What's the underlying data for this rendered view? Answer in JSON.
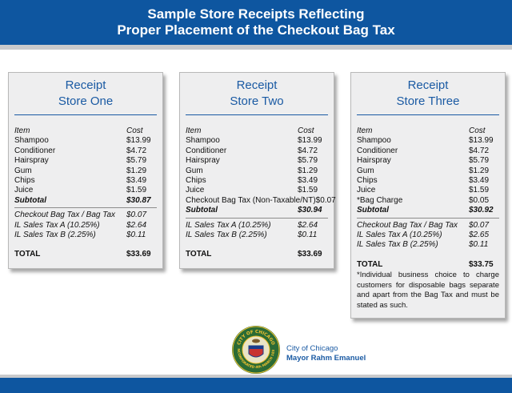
{
  "header": {
    "line1": "Sample Store Receipts Reflecting",
    "line2": "Proper Placement of the Checkout Bag Tax"
  },
  "receipts": [
    {
      "title1": "Receipt",
      "title2": "Store One",
      "col_item": "Item",
      "col_cost": "Cost",
      "items": [
        {
          "name": "Shampoo",
          "cost": "$13.99"
        },
        {
          "name": "Conditioner",
          "cost": "$4.72"
        },
        {
          "name": "Hairspray",
          "cost": "$5.79"
        },
        {
          "name": "Gum",
          "cost": "$1.29"
        },
        {
          "name": "Chips",
          "cost": "$3.49"
        },
        {
          "name": "Juice",
          "cost": "$1.59"
        }
      ],
      "subtotal_label": "Subtotal",
      "subtotal": "$30.87",
      "taxes": [
        {
          "name": "Checkout Bag Tax / Bag Tax",
          "cost": "$0.07"
        },
        {
          "name": "IL Sales Tax A (10.25%)",
          "cost": "$2.64"
        },
        {
          "name": "IL Sales Tax B (2.25%)",
          "cost": "$0.11"
        }
      ],
      "total_label": "TOTAL",
      "total": "$33.69"
    },
    {
      "title1": "Receipt",
      "title2": "Store Two",
      "col_item": "Item",
      "col_cost": "Cost",
      "items": [
        {
          "name": "Shampoo",
          "cost": "$13.99"
        },
        {
          "name": "Conditioner",
          "cost": "$4.72"
        },
        {
          "name": "Hairspray",
          "cost": "$5.79"
        },
        {
          "name": "Gum",
          "cost": "$1.29"
        },
        {
          "name": "Chips",
          "cost": "$3.49"
        },
        {
          "name": "Juice",
          "cost": "$1.59"
        },
        {
          "name": "Checkout Bag Tax (Non-Taxable/NT)",
          "cost": "$0.07"
        }
      ],
      "subtotal_label": "Subtotal",
      "subtotal": "$30.94",
      "taxes": [
        {
          "name": "IL Sales Tax A (10.25%)",
          "cost": "$2.64"
        },
        {
          "name": "IL Sales Tax B (2.25%)",
          "cost": "$0.11"
        }
      ],
      "total_label": "TOTAL",
      "total": "$33.69"
    },
    {
      "title1": "Receipt",
      "title2": "Store Three",
      "col_item": "Item",
      "col_cost": "Cost",
      "items": [
        {
          "name": "Shampoo",
          "cost": "$13.99"
        },
        {
          "name": "Conditioner",
          "cost": "$4.72"
        },
        {
          "name": "Hairspray",
          "cost": "$5.79"
        },
        {
          "name": "Gum",
          "cost": "$1.29"
        },
        {
          "name": "Chips",
          "cost": "$3.49"
        },
        {
          "name": "Juice",
          "cost": "$1.59"
        },
        {
          "name": "*Bag Charge",
          "cost": "$0.05"
        }
      ],
      "subtotal_label": "Subtotal",
      "subtotal": "$30.92",
      "taxes": [
        {
          "name": "Checkout Bag Tax / Bag Tax",
          "cost": "$0.07"
        },
        {
          "name": "IL Sales Tax A (10.25%)",
          "cost": "$2.65"
        },
        {
          "name": "IL Sales Tax B (2.25%)",
          "cost": "$0.11"
        }
      ],
      "total_label": "TOTAL",
      "total": "$33.75",
      "note": "*Individual business choice to charge customers for disposable bags separate and apart from the Bag Tax and must be stated as such."
    }
  ],
  "footer": {
    "city": "City of Chicago",
    "mayor": "Mayor Rahm Emanuel",
    "seal_text": "CITY OF CHICAGO · INCORPORATED 4th MARCH 1837"
  },
  "colors": {
    "brand_blue": "#0e56a0",
    "title_blue": "#1a5aa3",
    "receipt_bg": "#eeeeef",
    "strip_gray": "#c9cacc"
  }
}
